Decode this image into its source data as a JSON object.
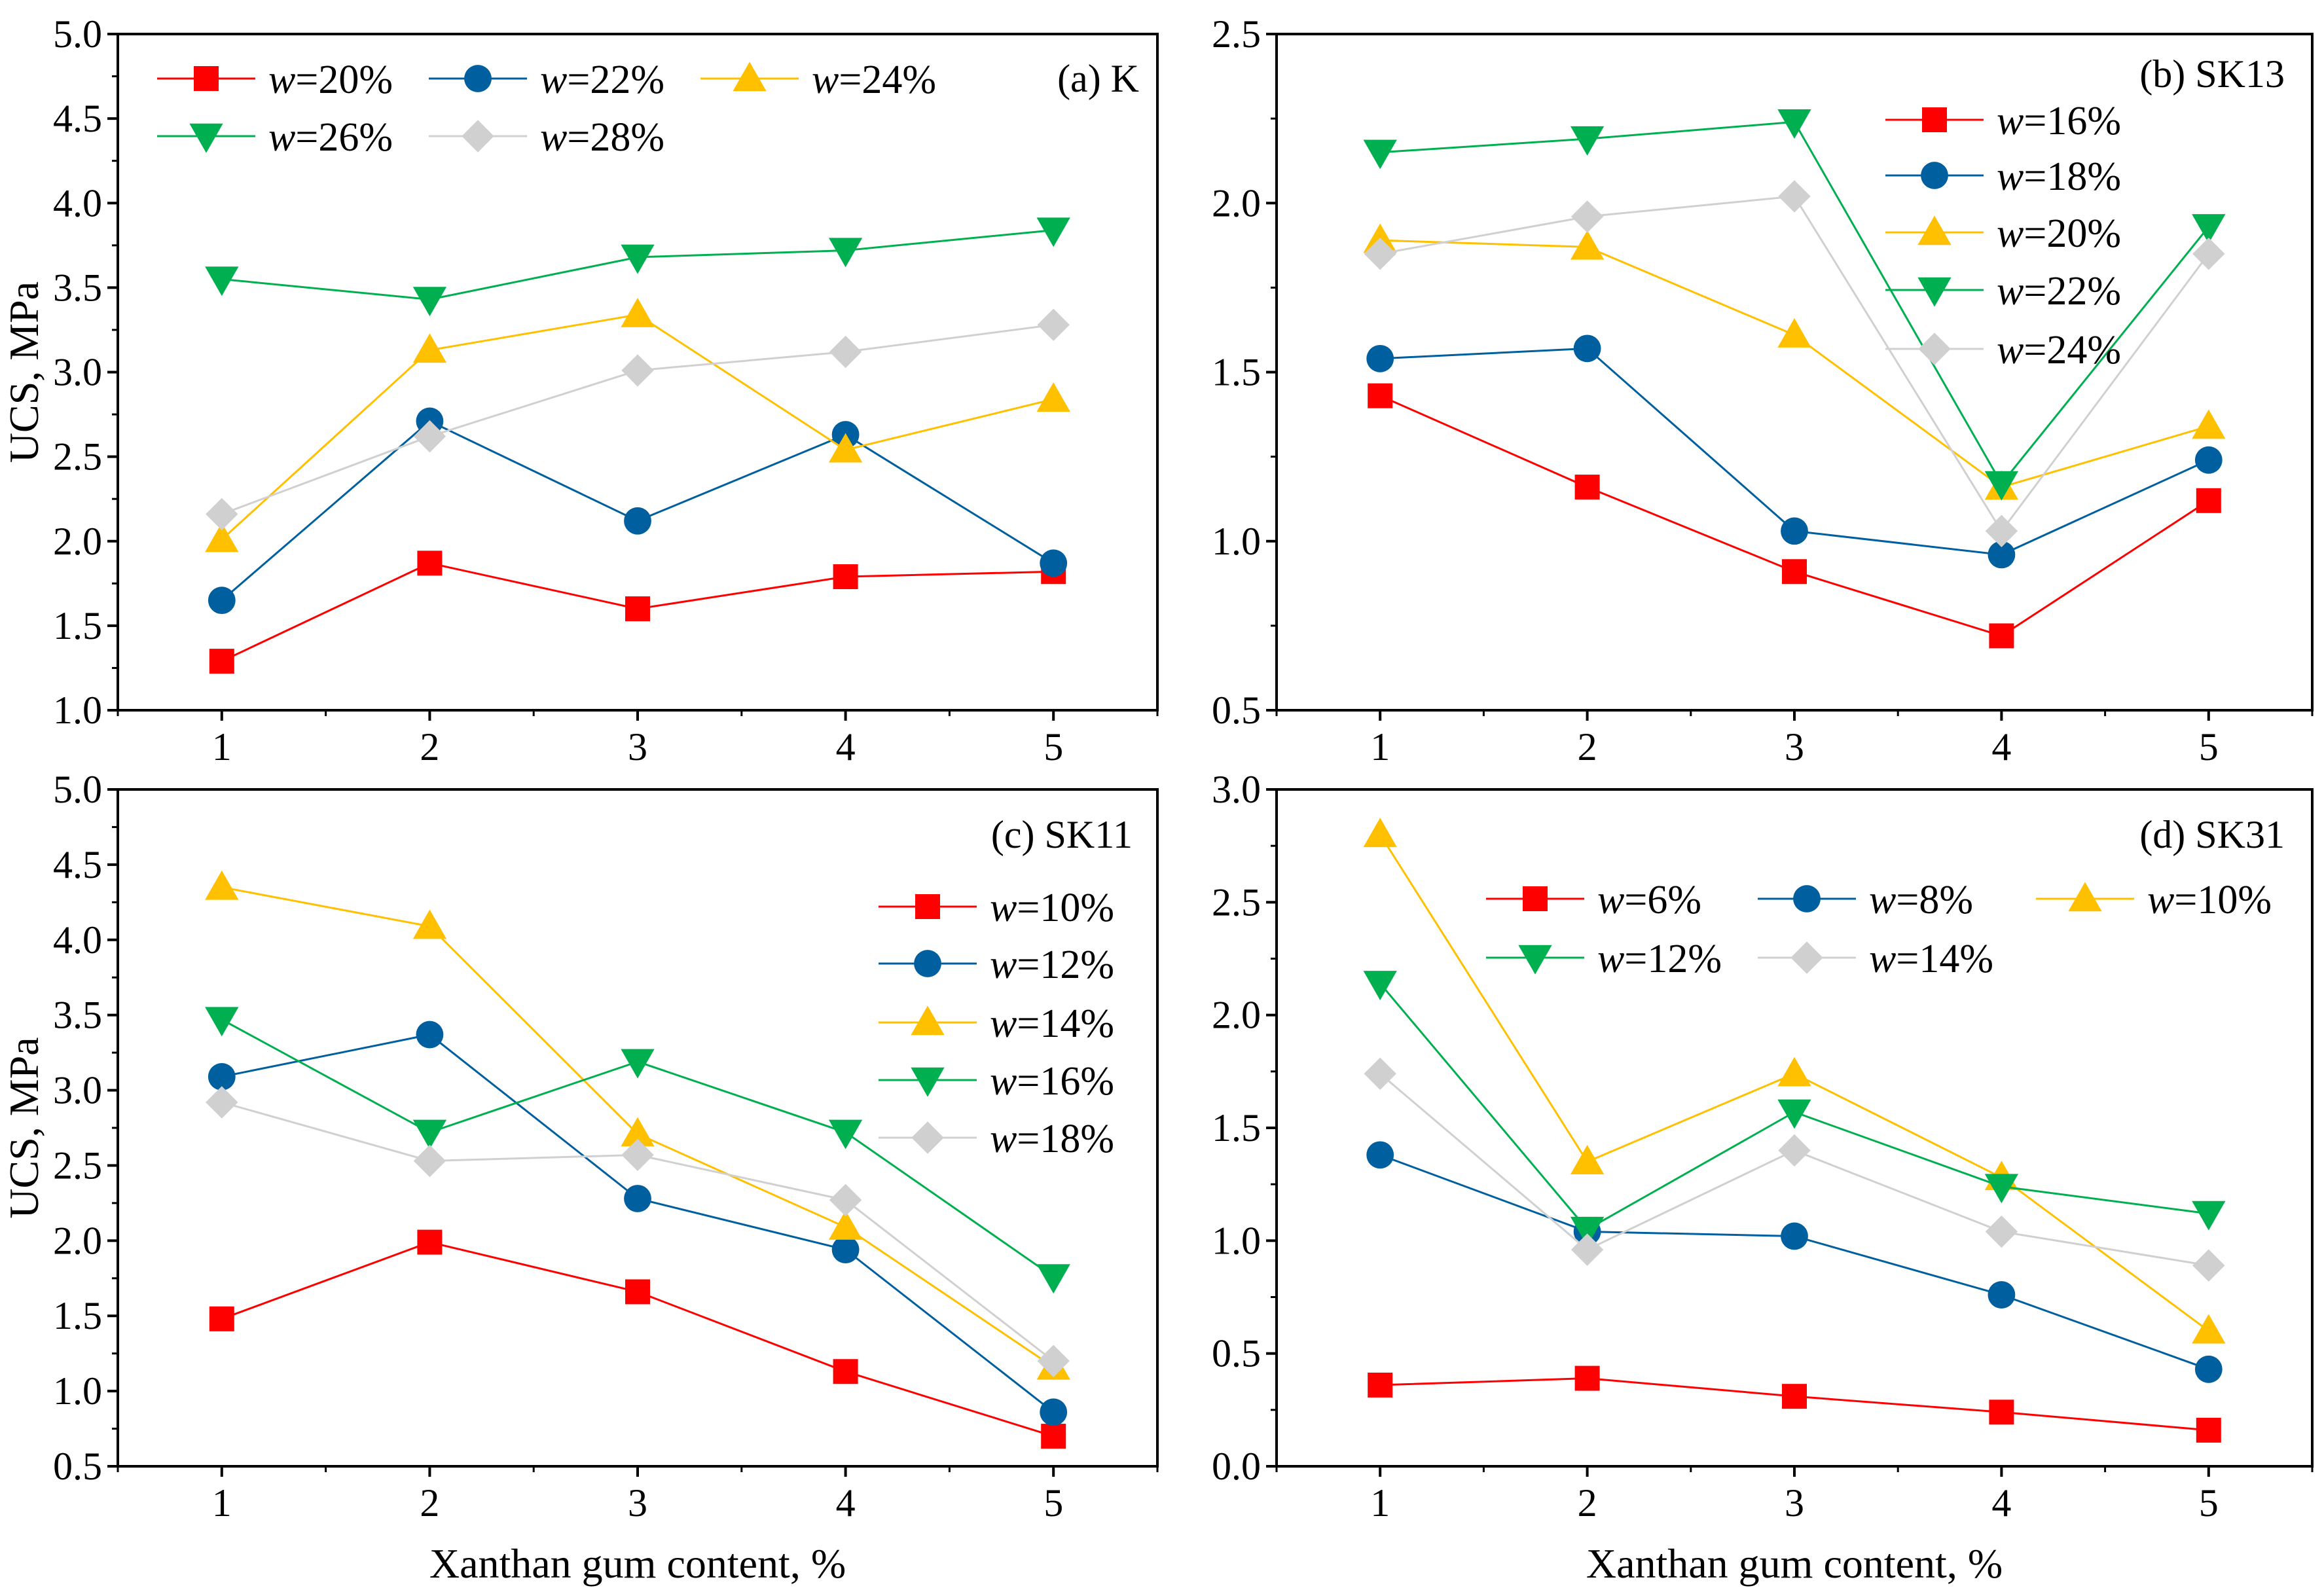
{
  "colors": {
    "red": "#ff0000",
    "blue": "#005f9e",
    "yellow": "#ffc000",
    "green": "#00b050",
    "gray": "#d0d0d0"
  },
  "chart_data": [
    {
      "type": "line",
      "panel_label": "(a) K",
      "xlabel": "",
      "ylabel": "UCS, MPa",
      "x": [
        1,
        2,
        3,
        4,
        5
      ],
      "xlim": [
        0.5,
        5.5
      ],
      "ylim": [
        1.0,
        5.0
      ],
      "yticks": [
        "1.0",
        "1.5",
        "2.0",
        "2.5",
        "3.0",
        "3.5",
        "4.0",
        "4.5",
        "5.0"
      ],
      "xticks": [
        "1",
        "2",
        "3",
        "4",
        "5"
      ],
      "legend_position": "top-left",
      "series": [
        {
          "name": "w=20%",
          "var": "w",
          "value": "=20%",
          "marker": "square",
          "color": "#ff0000",
          "values": [
            1.29,
            1.87,
            1.6,
            1.79,
            1.82
          ]
        },
        {
          "name": "w=22%",
          "var": "w",
          "value": "=22%",
          "marker": "circle",
          "color": "#005f9e",
          "values": [
            1.65,
            2.71,
            2.12,
            2.63,
            1.87
          ]
        },
        {
          "name": "w=24%",
          "var": "w",
          "value": "=24%",
          "marker": "triangle-up",
          "color": "#ffc000",
          "values": [
            2.01,
            3.13,
            3.34,
            2.54,
            2.84
          ]
        },
        {
          "name": "w=26%",
          "var": "w",
          "value": "=26%",
          "marker": "triangle-down",
          "color": "#00b050",
          "values": [
            3.55,
            3.43,
            3.68,
            3.72,
            3.84
          ]
        },
        {
          "name": "w=28%",
          "var": "w",
          "value": "=28%",
          "marker": "diamond",
          "color": "#d0d0d0",
          "values": [
            2.16,
            2.62,
            3.01,
            3.12,
            3.28
          ]
        }
      ]
    },
    {
      "type": "line",
      "panel_label": "(b) SK13",
      "xlabel": "",
      "ylabel": "",
      "x": [
        1,
        2,
        3,
        4,
        5
      ],
      "xlim": [
        0.5,
        5.5
      ],
      "ylim": [
        0.5,
        2.5
      ],
      "yticks": [
        "0.5",
        "1.0",
        "1.5",
        "2.0",
        "2.5"
      ],
      "xticks": [
        "1",
        "2",
        "3",
        "4",
        "5"
      ],
      "legend_position": "top-right",
      "series": [
        {
          "name": "w=16%",
          "var": "w",
          "value": "=16%",
          "marker": "square",
          "color": "#ff0000",
          "values": [
            1.43,
            1.16,
            0.91,
            0.72,
            1.12
          ]
        },
        {
          "name": "w=18%",
          "var": "w",
          "value": "=18%",
          "marker": "circle",
          "color": "#005f9e",
          "values": [
            1.54,
            1.57,
            1.03,
            0.96,
            1.24
          ]
        },
        {
          "name": "w=20%",
          "var": "w",
          "value": "=20%",
          "marker": "triangle-up",
          "color": "#ffc000",
          "values": [
            1.89,
            1.87,
            1.61,
            1.16,
            1.34
          ]
        },
        {
          "name": "w=22%",
          "var": "w",
          "value": "=22%",
          "marker": "triangle-down",
          "color": "#00b050",
          "values": [
            2.15,
            2.19,
            2.24,
            1.17,
            1.93
          ]
        },
        {
          "name": "w=24%",
          "var": "w",
          "value": "=24%",
          "marker": "diamond",
          "color": "#d0d0d0",
          "values": [
            1.85,
            1.96,
            2.02,
            1.03,
            1.85
          ]
        }
      ]
    },
    {
      "type": "line",
      "panel_label": "(c) SK11",
      "xlabel": "Xanthan gum content, %",
      "ylabel": "UCS, MPa",
      "x": [
        1,
        2,
        3,
        4,
        5
      ],
      "xlim": [
        0.5,
        5.5
      ],
      "ylim": [
        0.5,
        5.0
      ],
      "yticks": [
        "0.5",
        "1.0",
        "1.5",
        "2.0",
        "2.5",
        "3.0",
        "3.5",
        "4.0",
        "4.5",
        "5.0"
      ],
      "xticks": [
        "1",
        "2",
        "3",
        "4",
        "5"
      ],
      "legend_position": "right",
      "series": [
        {
          "name": "w=10%",
          "var": "w",
          "value": "=10%",
          "marker": "square",
          "color": "#ff0000",
          "values": [
            1.48,
            1.99,
            1.66,
            1.13,
            0.7
          ]
        },
        {
          "name": "w=12%",
          "var": "w",
          "value": "=12%",
          "marker": "circle",
          "color": "#005f9e",
          "values": [
            3.09,
            3.37,
            2.28,
            1.94,
            0.86
          ]
        },
        {
          "name": "w=14%",
          "var": "w",
          "value": "=14%",
          "marker": "triangle-up",
          "color": "#ffc000",
          "values": [
            4.35,
            4.09,
            2.71,
            2.09,
            1.16
          ]
        },
        {
          "name": "w=16%",
          "var": "w",
          "value": "=16%",
          "marker": "triangle-down",
          "color": "#00b050",
          "values": [
            3.47,
            2.72,
            3.19,
            2.72,
            1.76
          ]
        },
        {
          "name": "w=18%",
          "var": "w",
          "value": "=18%",
          "marker": "diamond",
          "color": "#d0d0d0",
          "values": [
            2.92,
            2.53,
            2.57,
            2.27,
            1.2
          ]
        }
      ]
    },
    {
      "type": "line",
      "panel_label": "(d) SK31",
      "xlabel": "Xanthan gum content, %",
      "ylabel": "",
      "x": [
        1,
        2,
        3,
        4,
        5
      ],
      "xlim": [
        0.5,
        5.5
      ],
      "ylim": [
        0.0,
        3.0
      ],
      "yticks": [
        "0.0",
        "0.5",
        "1.0",
        "1.5",
        "2.0",
        "2.5",
        "3.0"
      ],
      "xticks": [
        "1",
        "2",
        "3",
        "4",
        "5"
      ],
      "legend_position": "top-center",
      "series": [
        {
          "name": "w=6%",
          "var": "w",
          "value": "=6%",
          "marker": "square",
          "color": "#ff0000",
          "values": [
            0.36,
            0.39,
            0.31,
            0.24,
            0.16
          ]
        },
        {
          "name": "w=8%",
          "var": "w",
          "value": "=8%",
          "marker": "circle",
          "color": "#005f9e",
          "values": [
            1.38,
            1.04,
            1.02,
            0.76,
            0.43
          ]
        },
        {
          "name": "w=10%",
          "var": "w",
          "value": "=10%",
          "marker": "triangle-up",
          "color": "#ffc000",
          "values": [
            2.8,
            1.35,
            1.74,
            1.28,
            0.6
          ]
        },
        {
          "name": "w=12%",
          "var": "w",
          "value": "=12%",
          "marker": "triangle-down",
          "color": "#00b050",
          "values": [
            2.14,
            1.05,
            1.57,
            1.24,
            1.12
          ]
        },
        {
          "name": "w=14%",
          "var": "w",
          "value": "=14%",
          "marker": "diamond",
          "color": "#d0d0d0",
          "values": [
            1.74,
            0.96,
            1.4,
            1.04,
            0.89
          ]
        }
      ]
    }
  ]
}
